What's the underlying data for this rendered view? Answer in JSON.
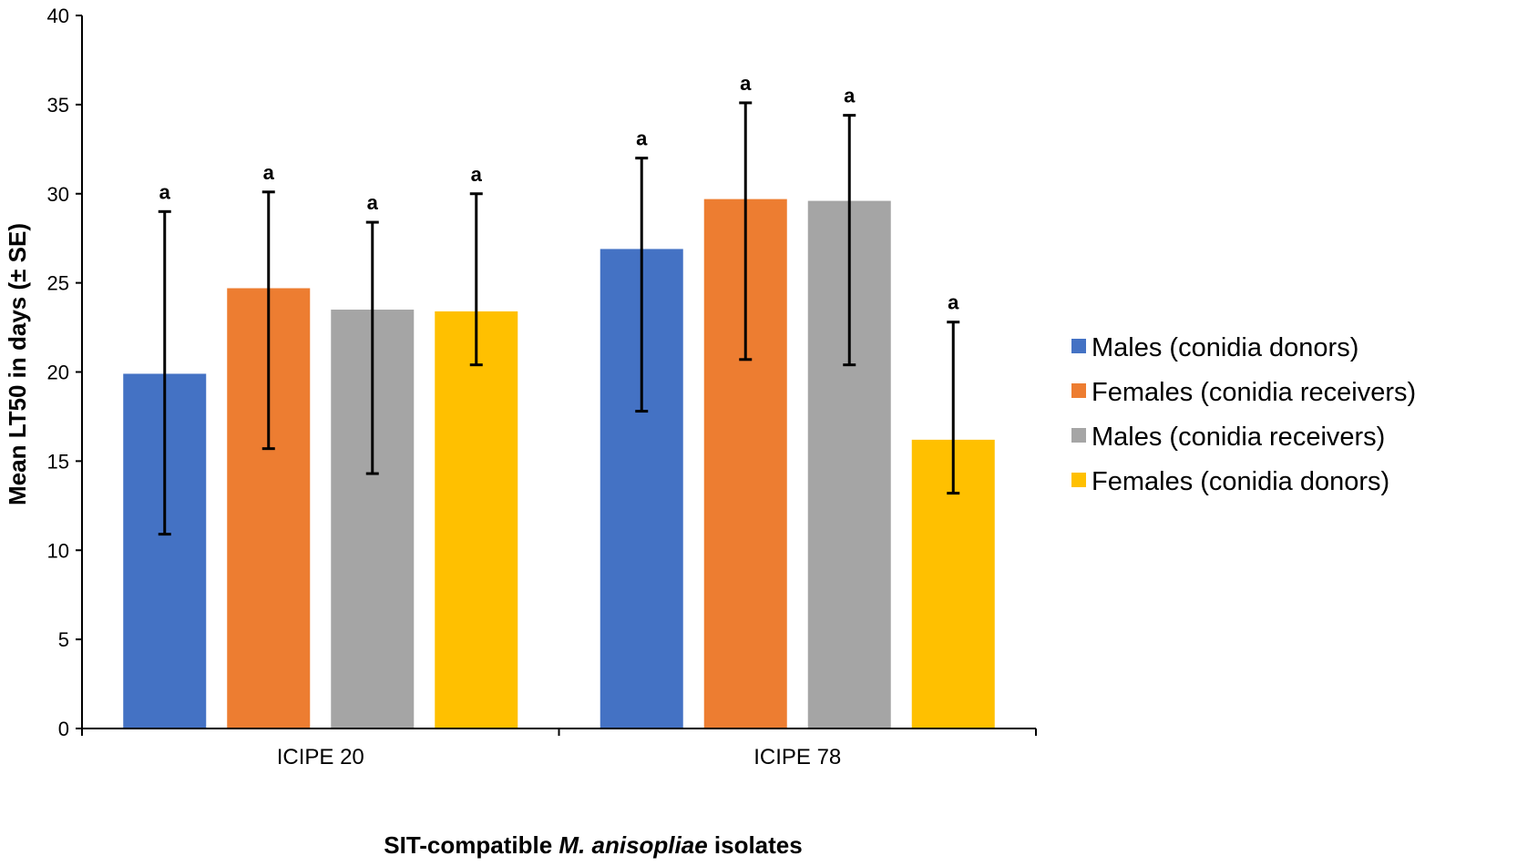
{
  "chart_data": {
    "type": "bar",
    "categories": [
      "ICIPE 20",
      "ICIPE 78"
    ],
    "series": [
      {
        "name": "Males (conidia donors)",
        "color": "#4472C4",
        "values": [
          19.9,
          26.9
        ],
        "errors": [
          9.1,
          5.1
        ],
        "labels": [
          "a",
          "a"
        ]
      },
      {
        "name": "Females (conidia receivers)",
        "color": "#ED7D31",
        "values": [
          24.7,
          29.7
        ],
        "errors": [
          5.4,
          5.4
        ],
        "labels": [
          "a",
          "a"
        ]
      },
      {
        "name": "Males (conidia receivers)",
        "color": "#A5A5A5",
        "values": [
          23.5,
          29.6
        ],
        "errors": [
          4.9,
          4.8
        ],
        "labels": [
          "a",
          "a"
        ]
      },
      {
        "name": "Females (conidia donors)",
        "color": "#FFC000",
        "values": [
          23.4,
          16.2
        ],
        "errors": [
          6.6,
          6.6
        ],
        "labels": [
          "a",
          "a"
        ]
      }
    ],
    "error_lower": [
      [
        9.0,
        9.1
      ],
      [
        9.0,
        9.0
      ],
      [
        9.2,
        9.2
      ],
      [
        3.0,
        3.0
      ]
    ],
    "ylim": [
      0,
      40
    ],
    "yticks": [
      "0",
      "5",
      "10",
      "15",
      "20",
      "25",
      "30",
      "35",
      "40"
    ],
    "ylabel": "Mean LT50 in days (± SE)",
    "xlabel_parts": [
      "SIT-compatible ",
      "M. anisopliae",
      " isolates"
    ],
    "legend_position": "right"
  }
}
